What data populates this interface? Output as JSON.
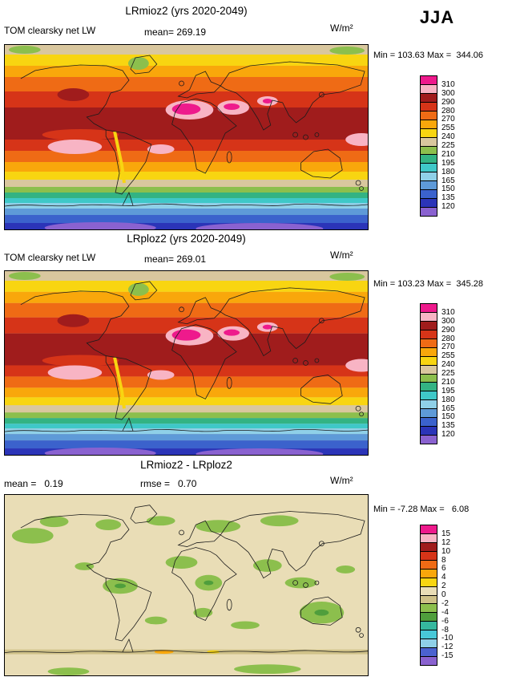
{
  "season": "JJA",
  "chart_data": [
    {
      "type": "heatmap",
      "projection": "global latitude-longitude map",
      "title": "LRmioz2 (yrs 2020-2049)",
      "variable": "TOM clearsky net LW",
      "units": "W/m²",
      "mean": 269.19,
      "mean_label": "mean= 269.19",
      "min": 103.63,
      "max": 344.06,
      "min_max_label": "Min = 103.63 Max =  344.06",
      "colorbar": {
        "ticks": [
          310,
          300,
          290,
          280,
          270,
          255,
          240,
          225,
          210,
          195,
          180,
          165,
          150,
          135,
          120
        ],
        "colors": [
          "#ee1a8c",
          "#f8b4c4",
          "#a01c1c",
          "#d63418",
          "#ef6b15",
          "#f9a70b",
          "#f8d511",
          "#d9c79e",
          "#8cbf4d",
          "#33b383",
          "#3fc8c8",
          "#8fd0e8",
          "#5e9ad8",
          "#3b62cc",
          "#2b34b8",
          "#8a62d0"
        ]
      }
    },
    {
      "type": "heatmap",
      "projection": "global latitude-longitude map",
      "title": "LRploz2 (yrs 2020-2049)",
      "variable": "TOM clearsky net LW",
      "units": "W/m²",
      "mean": 269.01,
      "mean_label": "mean= 269.01",
      "min": 103.23,
      "max": 345.28,
      "min_max_label": "Min = 103.23 Max =  345.28",
      "colorbar": {
        "ticks": [
          310,
          300,
          290,
          280,
          270,
          255,
          240,
          225,
          210,
          195,
          180,
          165,
          150,
          135,
          120
        ],
        "colors": [
          "#ee1a8c",
          "#f8b4c4",
          "#a01c1c",
          "#d63418",
          "#ef6b15",
          "#f9a70b",
          "#f8d511",
          "#d9c79e",
          "#8cbf4d",
          "#33b383",
          "#3fc8c8",
          "#8fd0e8",
          "#5e9ad8",
          "#3b62cc",
          "#2b34b8",
          "#8a62d0"
        ]
      }
    },
    {
      "type": "heatmap",
      "projection": "global latitude-longitude map",
      "title": "LRmioz2 - LRploz2",
      "units": "W/m²",
      "mean": 0.19,
      "rmse": 0.7,
      "mean_label": "mean =   0.19",
      "rmse_label": "rmse =   0.70",
      "min": -7.28,
      "max": 6.08,
      "min_max_label": "Min = -7.28 Max =   6.08",
      "colorbar": {
        "ticks": [
          15,
          12,
          10,
          8,
          6,
          4,
          2,
          0,
          -2,
          -4,
          -6,
          -8,
          -10,
          -12,
          -15
        ],
        "colors": [
          "#ee1a8c",
          "#f8b4c4",
          "#a01c1c",
          "#d63418",
          "#ef6b15",
          "#f9a70b",
          "#f8d511",
          "#e9ddb6",
          "#cfc188",
          "#8cbf4d",
          "#4f9e3c",
          "#35b89e",
          "#48c8d8",
          "#8fd0e8",
          "#4b62d0",
          "#8a62d0"
        ]
      }
    }
  ]
}
